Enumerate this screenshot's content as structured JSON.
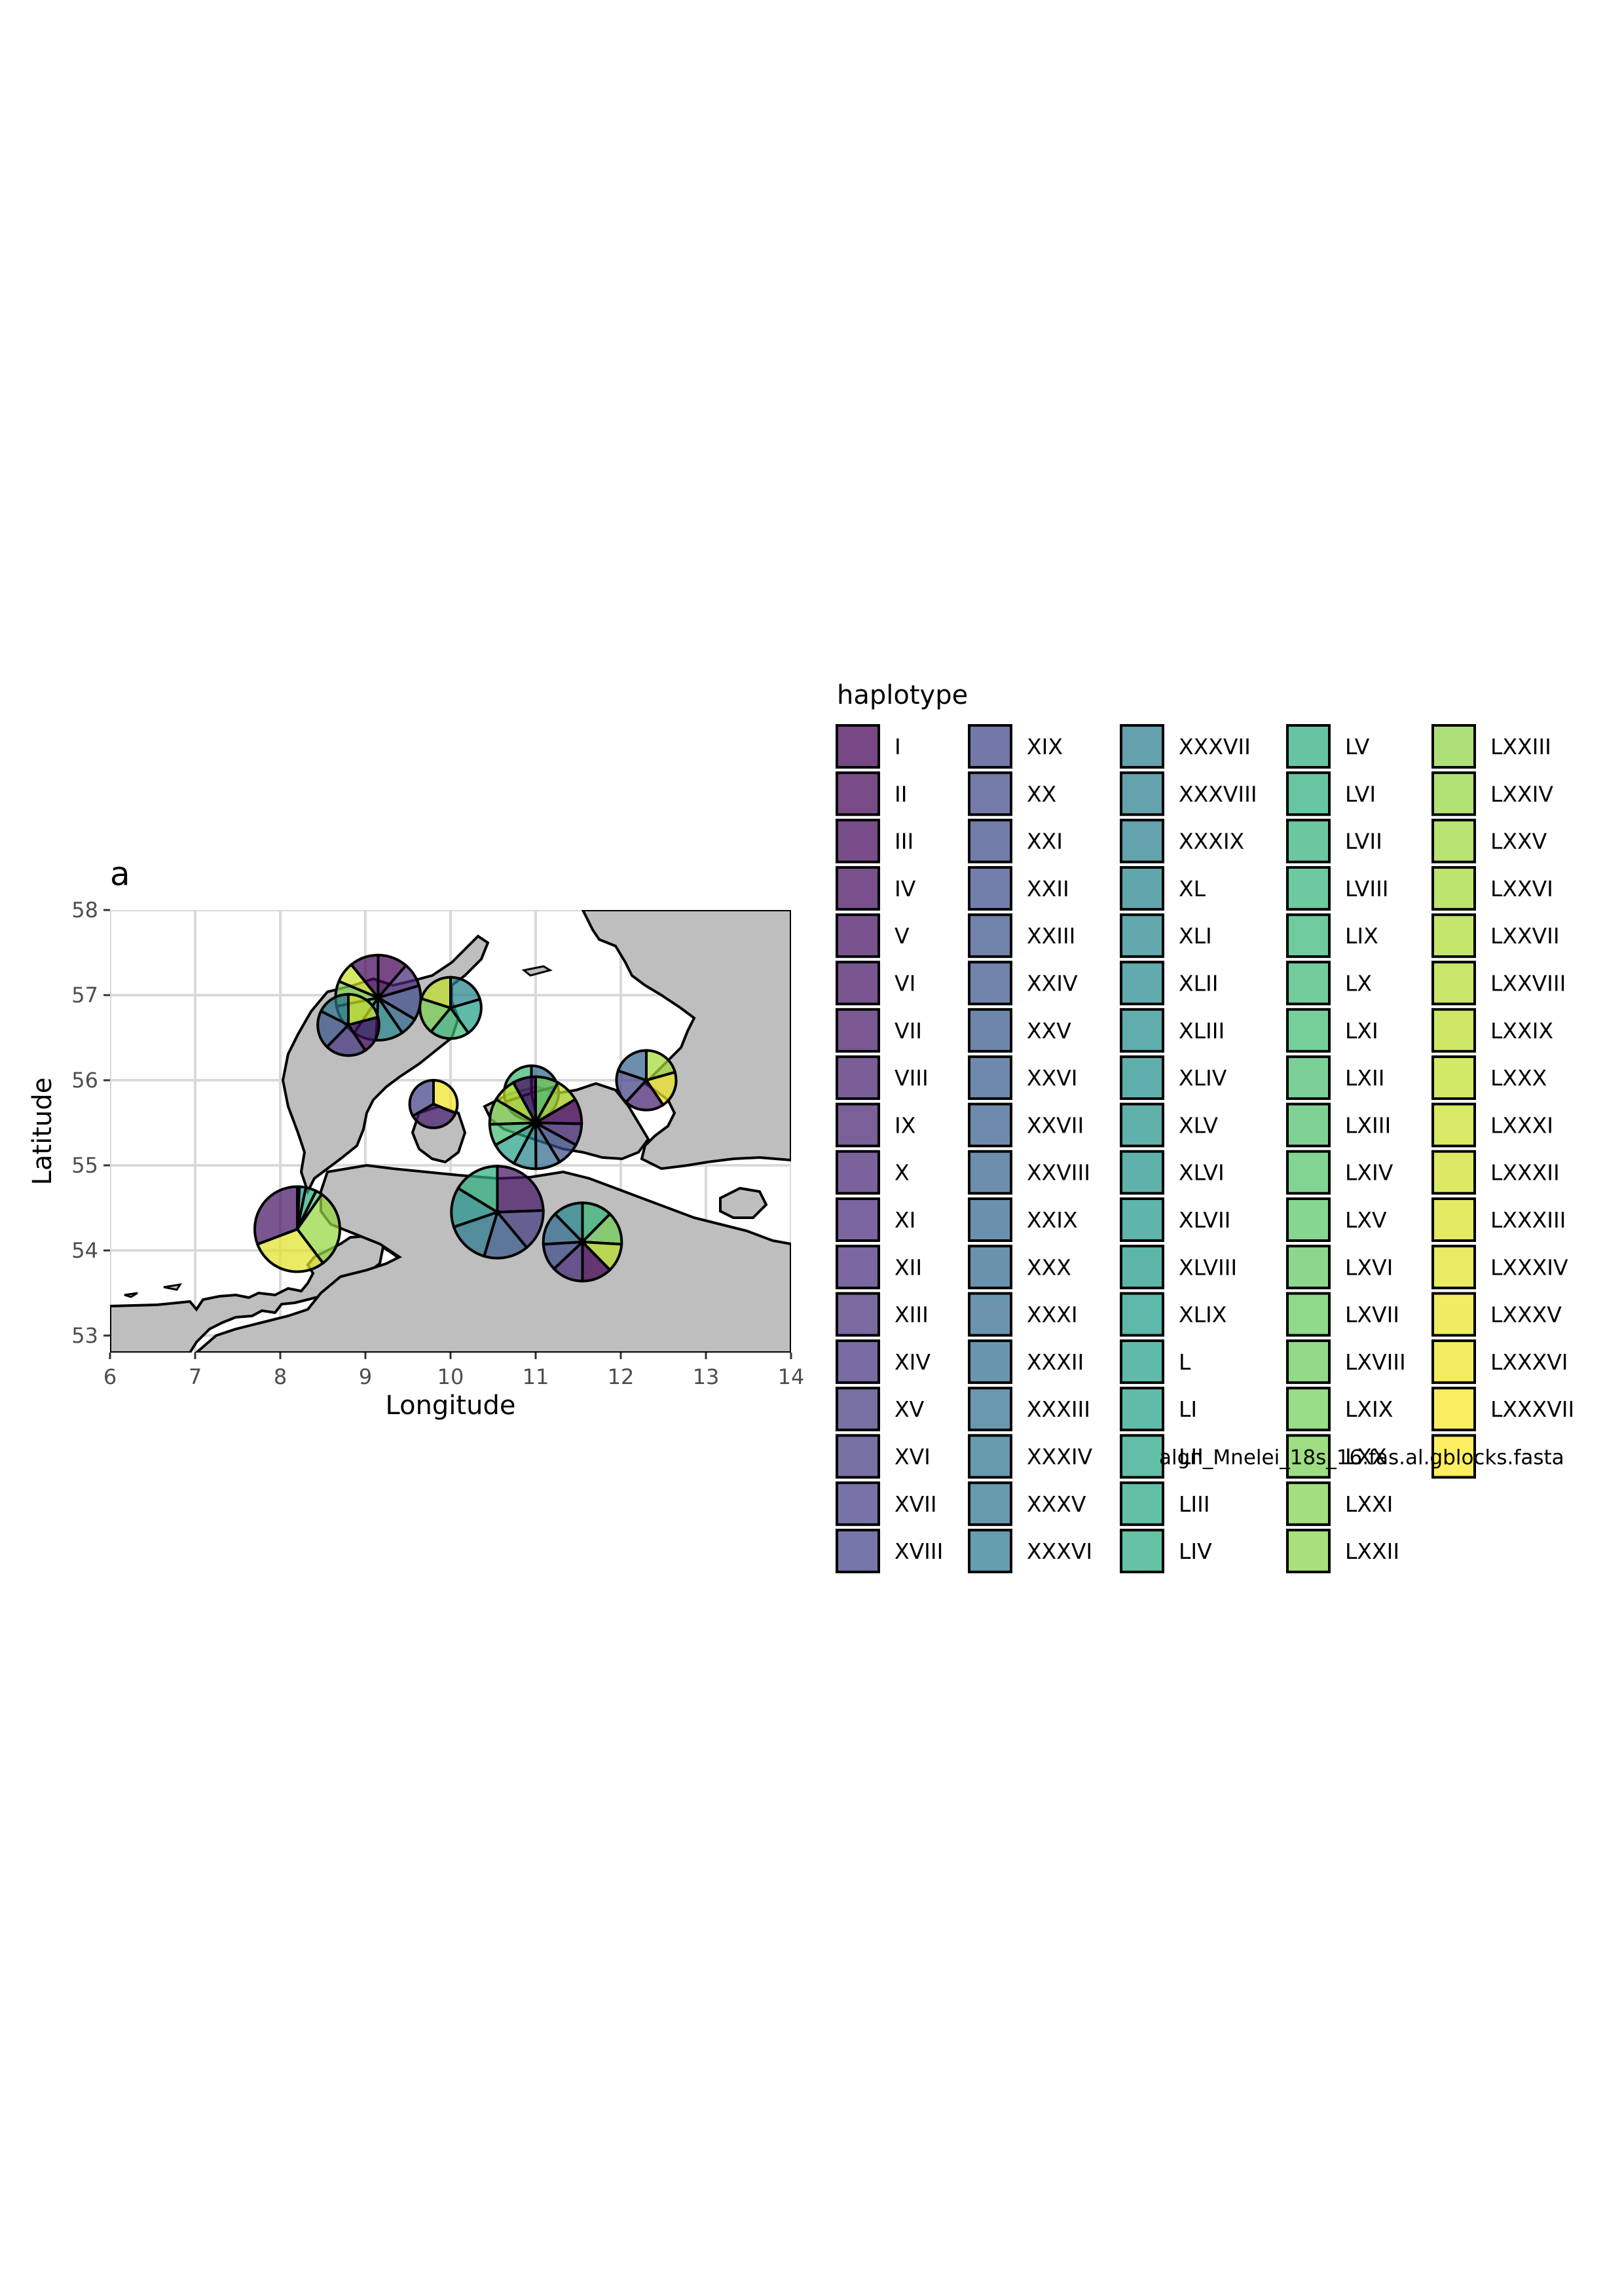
{
  "chart_data": {
    "type": "map-pie",
    "panel_label": "a",
    "xlabel": "Longitude",
    "ylabel": "Latitude",
    "xlim": [
      6,
      14
    ],
    "ylim": [
      52.8,
      58
    ],
    "xticks": [
      6,
      7,
      8,
      9,
      10,
      11,
      12,
      13,
      14
    ],
    "yticks": [
      53,
      54,
      55,
      56,
      57,
      58
    ],
    "grid": true,
    "land_color": "#bebebe",
    "grid_color": "#d9d9d9",
    "legend": {
      "title": "haplotype",
      "placement": "right",
      "items": [
        "I",
        "II",
        "III",
        "IV",
        "V",
        "VI",
        "VII",
        "VIII",
        "IX",
        "X",
        "XI",
        "XII",
        "XIII",
        "XIV",
        "XV",
        "XVI",
        "XVII",
        "XVIII",
        "XIX",
        "XX",
        "XXI",
        "XXII",
        "XXIII",
        "XXIV",
        "XXV",
        "XXVI",
        "XXVII",
        "XXVIII",
        "XXIX",
        "XXX",
        "XXXI",
        "XXXII",
        "XXXIII",
        "XXXIV",
        "XXXV",
        "XXXVI",
        "XXXVII",
        "XXXVIII",
        "XXXIX",
        "XL",
        "XLI",
        "XLII",
        "XLIII",
        "XLIV",
        "XLV",
        "XLVI",
        "XLVII",
        "XLVIII",
        "XLIX",
        "L",
        "LI",
        "LII",
        "LIII",
        "LIV",
        "LV",
        "LVI",
        "LVII",
        "LVIII",
        "LIX",
        "LX",
        "LXI",
        "LXII",
        "LXIII",
        "LXIV",
        "LXV",
        "LXVI",
        "LXVII",
        "LXVIII",
        "LXIX",
        "LXX",
        "LXXI",
        "LXXII",
        "LXXIII",
        "LXXIV",
        "LXXV",
        "LXXVI",
        "LXXVII",
        "LXXVIII",
        "LXXIX",
        "LXXX",
        "LXXXI",
        "LXXXII",
        "LXXXIII",
        "LXXXIV",
        "LXXXV",
        "LXXXVI",
        "LXXXVII",
        "algn_Mnelei_18s_16.fas.al.gblocks.fasta"
      ]
    },
    "pies": [
      {
        "lon": 9.15,
        "lat": 56.97,
        "r": 0.5,
        "slices": [
          26,
          21,
          30,
          16,
          24,
          20,
          28,
          22,
          18,
          25
        ]
      },
      {
        "lon": 8.8,
        "lat": 56.65,
        "r": 0.36,
        "slices": [
          57,
          54,
          59,
          55,
          48
        ]
      },
      {
        "lon": 10.0,
        "lat": 56.85,
        "r": 0.36,
        "slices": [
          57,
          55,
          58,
          53,
          56
        ]
      },
      {
        "lon": 9.8,
        "lat": 55.72,
        "r": 0.28,
        "slices": [
          30,
          34,
          32
        ]
      },
      {
        "lon": 10.95,
        "lat": 55.85,
        "r": 0.32,
        "slices": [
          18,
          22,
          20,
          26
        ]
      },
      {
        "lon": 11.0,
        "lat": 55.5,
        "r": 0.54,
        "slices": [
          42,
          44,
          46,
          40,
          43,
          45,
          41,
          48,
          39,
          47,
          44,
          42
        ]
      },
      {
        "lon": 12.3,
        "lat": 56.0,
        "r": 0.35,
        "slices": [
          52,
          50,
          54,
          46,
          50
        ]
      },
      {
        "lon": 8.2,
        "lat": 54.25,
        "r": 0.5,
        "slices": [
          2,
          6,
          10,
          6,
          74,
          73,
          76
        ]
      },
      {
        "lon": 10.55,
        "lat": 54.45,
        "r": 0.54,
        "slices": [
          84,
          50,
          54,
          52,
          48,
          56
        ]
      },
      {
        "lon": 11.55,
        "lat": 54.1,
        "r": 0.46,
        "slices": [
          20,
          22,
          19,
          20,
          21,
          18,
          22,
          20
        ]
      }
    ]
  }
}
